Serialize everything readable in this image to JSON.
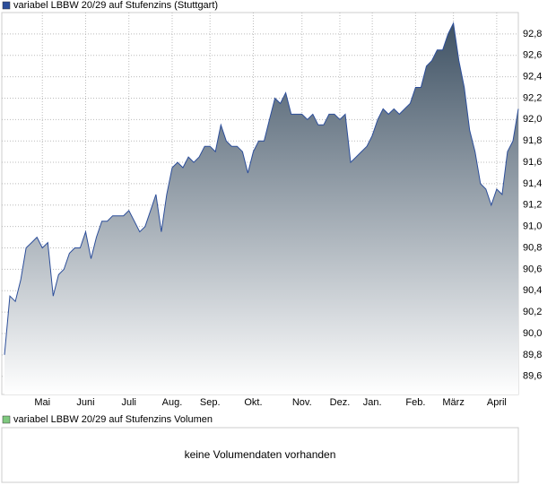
{
  "chart_data": {
    "type": "area",
    "series": [
      {
        "name": "variabel LBBW 20/29 auf Stufenzins (Stuttgart)",
        "color": "#2c4e9a",
        "values": [
          89.8,
          90.35,
          90.3,
          90.5,
          90.8,
          90.85,
          90.9,
          90.8,
          90.85,
          90.35,
          90.55,
          90.6,
          90.75,
          90.8,
          90.8,
          90.95,
          90.7,
          90.9,
          91.05,
          91.05,
          91.1,
          91.1,
          91.1,
          91.15,
          91.05,
          90.95,
          91.0,
          91.15,
          91.3,
          90.95,
          91.3,
          91.55,
          91.6,
          91.55,
          91.65,
          91.6,
          91.65,
          91.75,
          91.75,
          91.7,
          91.95,
          91.8,
          91.75,
          91.75,
          91.7,
          91.5,
          91.7,
          91.8,
          91.8,
          92.0,
          92.2,
          92.15,
          92.25,
          92.05,
          92.05,
          92.05,
          92.0,
          92.05,
          91.95,
          91.95,
          92.05,
          92.05,
          92.0,
          92.05,
          91.6,
          91.65,
          91.7,
          91.75,
          91.85,
          92.0,
          92.1,
          92.05,
          92.1,
          92.05,
          92.1,
          92.15,
          92.3,
          92.3,
          92.5,
          92.55,
          92.65,
          92.65,
          92.8,
          92.9,
          92.55,
          92.3,
          91.9,
          91.7,
          91.4,
          91.35,
          91.2,
          91.35,
          91.3,
          91.7,
          91.8,
          92.1
        ]
      }
    ],
    "categories": [
      null,
      null,
      null,
      null,
      null,
      null,
      null,
      "Mai",
      null,
      null,
      null,
      null,
      null,
      null,
      null,
      "Juni",
      null,
      null,
      null,
      null,
      null,
      null,
      null,
      "Juli",
      null,
      null,
      null,
      null,
      null,
      null,
      null,
      "Aug.",
      null,
      null,
      null,
      null,
      null,
      null,
      "Sep.",
      null,
      null,
      null,
      null,
      null,
      null,
      null,
      "Okt.",
      null,
      null,
      null,
      null,
      null,
      null,
      null,
      null,
      "Nov.",
      null,
      null,
      null,
      null,
      null,
      null,
      "Dez.",
      null,
      null,
      null,
      null,
      null,
      "Jan.",
      null,
      null,
      null,
      null,
      null,
      null,
      null,
      "Feb.",
      null,
      null,
      null,
      null,
      null,
      null,
      "März",
      null,
      null,
      null,
      null,
      null,
      null,
      null,
      "April",
      null,
      null,
      null,
      null
    ],
    "ylim": [
      89.43,
      93.0
    ],
    "yticks": [
      {
        "value": 89.6,
        "label": "89,6"
      },
      {
        "value": 89.8,
        "label": "89,8"
      },
      {
        "value": 90.0,
        "label": "90,0"
      },
      {
        "value": 90.2,
        "label": "90,2"
      },
      {
        "value": 90.4,
        "label": "90,4"
      },
      {
        "value": 90.6,
        "label": "90,6"
      },
      {
        "value": 90.8,
        "label": "90,8"
      },
      {
        "value": 91.0,
        "label": "91,0"
      },
      {
        "value": 91.2,
        "label": "91,2"
      },
      {
        "value": 91.4,
        "label": "91,4"
      },
      {
        "value": 91.6,
        "label": "91,6"
      },
      {
        "value": 91.8,
        "label": "91,8"
      },
      {
        "value": 92.0,
        "label": "92,0"
      },
      {
        "value": 92.2,
        "label": "92,2"
      },
      {
        "value": 92.4,
        "label": "92,4"
      },
      {
        "value": 92.6,
        "label": "92,6"
      },
      {
        "value": 92.8,
        "label": "92,8"
      }
    ],
    "grid": true
  },
  "volume_panel": {
    "legend": "variabel LBBW 20/29 auf Stufenzins Volumen",
    "color": "#7fc97f",
    "message": "keine Volumendaten vorhanden"
  }
}
